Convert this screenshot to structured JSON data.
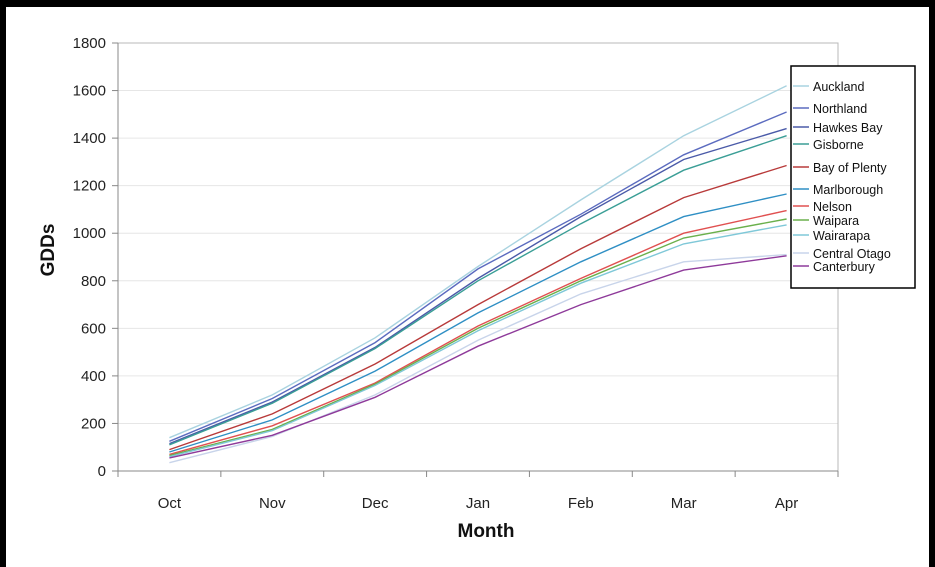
{
  "chart_data": {
    "type": "line",
    "xlabel": "Month",
    "ylabel": "GDDs",
    "categories": [
      "Oct",
      "Nov",
      "Dec",
      "Jan",
      "Feb",
      "Mar",
      "Apr"
    ],
    "ylim": [
      0,
      1800
    ],
    "yticks": [
      0,
      200,
      400,
      600,
      800,
      1000,
      1200,
      1400,
      1600,
      1800
    ],
    "grid": true,
    "legend_position": "right",
    "series": [
      {
        "name": "Auckland",
        "color": "#a9d3e0",
        "values": [
          140,
          320,
          560,
          860,
          1140,
          1410,
          1620
        ]
      },
      {
        "name": "Northland",
        "color": "#5b6bbf",
        "values": [
          125,
          305,
          540,
          850,
          1080,
          1330,
          1510
        ]
      },
      {
        "name": "Hawkes Bay",
        "color": "#4a5aa8",
        "values": [
          115,
          290,
          520,
          810,
          1070,
          1310,
          1440
        ]
      },
      {
        "name": "Gisborne",
        "color": "#3a9e96",
        "values": [
          110,
          285,
          515,
          800,
          1040,
          1265,
          1410
        ]
      },
      {
        "name": "Bay of Plenty",
        "color": "#b83a3a",
        "values": [
          90,
          240,
          450,
          700,
          935,
          1150,
          1285
        ]
      },
      {
        "name": "Marlborough",
        "color": "#2f8fc4",
        "values": [
          80,
          215,
          420,
          665,
          880,
          1070,
          1165
        ]
      },
      {
        "name": "Nelson",
        "color": "#e05050",
        "values": [
          70,
          190,
          370,
          610,
          810,
          1000,
          1095
        ]
      },
      {
        "name": "Waipara",
        "color": "#6ab04c",
        "values": [
          65,
          175,
          365,
          600,
          800,
          980,
          1060
        ]
      },
      {
        "name": "Wairarapa",
        "color": "#7fc8d8",
        "values": [
          60,
          170,
          360,
          590,
          790,
          955,
          1035
        ]
      },
      {
        "name": "Central Otago",
        "color": "#c8d4ea",
        "values": [
          35,
          145,
          320,
          550,
          745,
          880,
          910
        ]
      },
      {
        "name": "Canterbury",
        "color": "#8e3a9a",
        "values": [
          55,
          150,
          310,
          525,
          700,
          845,
          905
        ]
      }
    ]
  }
}
